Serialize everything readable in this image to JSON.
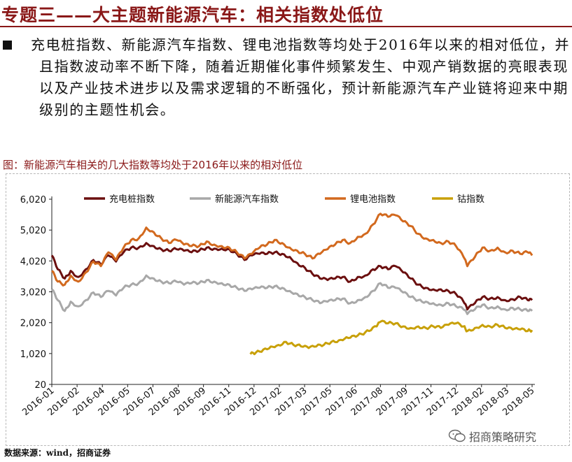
{
  "header": {
    "title": "专题三——大主题新能源汽车：相关指数处低位"
  },
  "bullet": {
    "text": "充电桩指数、新能源汽车指数、锂电池指数等均处于2016年以来的相对低位，并且指数波动率不断下降，随着近期催化事件频繁发生、中观产销数据的亮眼表现以及产业技术进步以及需求逻辑的不断强化，预计新能源汽车产业链将迎来中期级别的主题性机会。"
  },
  "figure": {
    "caption": "图：新能源汽车相关的几大指数等均处于2016年以来的相对低位"
  },
  "source": {
    "text": "数据来源：wind，招商证券"
  },
  "watermark": {
    "text": "招商策略研究",
    "icon": "wechat-icon"
  },
  "chart_data": {
    "type": "line",
    "title": "",
    "xlabel": "",
    "ylabel": "",
    "ylim": [
      20,
      6020
    ],
    "yticks": [
      "6,020",
      "5,020",
      "4,020",
      "3,020",
      "2,020",
      "1,020",
      "20"
    ],
    "ytick_values": [
      6020,
      5020,
      4020,
      3020,
      2020,
      1020,
      20
    ],
    "xticks": [
      "2016-01",
      "2016-02",
      "2016-04",
      "2016-05",
      "2016-07",
      "2016-08",
      "2016-09",
      "2016-11",
      "2016-12",
      "2017-02",
      "2017-03",
      "2017-05",
      "2017-06",
      "2017-08",
      "2017-09",
      "2017-11",
      "2017-12",
      "2018-02",
      "2018-03",
      "2018-05"
    ],
    "xrange": [
      "2016-01-04",
      "2018-06-12"
    ],
    "grid": false,
    "legend_position": "top",
    "series": [
      {
        "name": "充电桩指数",
        "color": "#6b0f0f",
        "points": [
          [
            "2016-01-04",
            4200
          ],
          [
            "2016-01-15",
            3750
          ],
          [
            "2016-01-28",
            3450
          ],
          [
            "2016-02-08",
            3700
          ],
          [
            "2016-02-22",
            3500
          ],
          [
            "2016-03-07",
            3750
          ],
          [
            "2016-03-21",
            4050
          ],
          [
            "2016-04-04",
            3900
          ],
          [
            "2016-04-18",
            4200
          ],
          [
            "2016-05-02",
            4000
          ],
          [
            "2016-05-16",
            4300
          ],
          [
            "2016-05-30",
            4450
          ],
          [
            "2016-06-13",
            4450
          ],
          [
            "2016-06-27",
            4600
          ],
          [
            "2016-07-11",
            4500
          ],
          [
            "2016-07-25",
            4400
          ],
          [
            "2016-08-08",
            4350
          ],
          [
            "2016-08-22",
            4400
          ],
          [
            "2016-09-05",
            4350
          ],
          [
            "2016-09-19",
            4300
          ],
          [
            "2016-10-03",
            4350
          ],
          [
            "2016-10-17",
            4450
          ],
          [
            "2016-10-31",
            4420
          ],
          [
            "2016-11-14",
            4420
          ],
          [
            "2016-11-28",
            4400
          ],
          [
            "2016-12-12",
            4250
          ],
          [
            "2016-12-26",
            4050
          ],
          [
            "2017-01-09",
            4200
          ],
          [
            "2017-01-23",
            4250
          ],
          [
            "2017-02-06",
            4250
          ],
          [
            "2017-02-20",
            4300
          ],
          [
            "2017-03-06",
            4250
          ],
          [
            "2017-03-20",
            4150
          ],
          [
            "2017-04-03",
            3950
          ],
          [
            "2017-04-17",
            3800
          ],
          [
            "2017-05-01",
            3600
          ],
          [
            "2017-05-15",
            3450
          ],
          [
            "2017-05-29",
            3400
          ],
          [
            "2017-06-12",
            3450
          ],
          [
            "2017-06-26",
            3500
          ],
          [
            "2017-07-10",
            3350
          ],
          [
            "2017-07-24",
            3500
          ],
          [
            "2017-08-07",
            3550
          ],
          [
            "2017-08-21",
            3750
          ],
          [
            "2017-09-04",
            3850
          ],
          [
            "2017-09-18",
            3750
          ],
          [
            "2017-10-02",
            3850
          ],
          [
            "2017-10-16",
            3650
          ],
          [
            "2017-10-30",
            3450
          ],
          [
            "2017-11-13",
            3250
          ],
          [
            "2017-11-27",
            3150
          ],
          [
            "2017-12-11",
            3100
          ],
          [
            "2017-12-25",
            3100
          ],
          [
            "2018-01-08",
            3050
          ],
          [
            "2018-01-22",
            2950
          ],
          [
            "2018-02-05",
            2700
          ],
          [
            "2018-02-12",
            2450
          ],
          [
            "2018-02-26",
            2650
          ],
          [
            "2018-03-12",
            2850
          ],
          [
            "2018-03-26",
            2800
          ],
          [
            "2018-04-09",
            2850
          ],
          [
            "2018-04-23",
            2750
          ],
          [
            "2018-05-07",
            2780
          ],
          [
            "2018-05-21",
            2850
          ],
          [
            "2018-06-04",
            2750
          ],
          [
            "2018-06-12",
            2750
          ]
        ]
      },
      {
        "name": "新能源汽车指数",
        "color": "#a8a8a8",
        "points": [
          [
            "2016-01-04",
            3100
          ],
          [
            "2016-01-15",
            2750
          ],
          [
            "2016-01-28",
            2400
          ],
          [
            "2016-02-08",
            2700
          ],
          [
            "2016-02-22",
            2550
          ],
          [
            "2016-03-07",
            2750
          ],
          [
            "2016-03-21",
            3000
          ],
          [
            "2016-04-04",
            2850
          ],
          [
            "2016-04-18",
            3050
          ],
          [
            "2016-05-02",
            2900
          ],
          [
            "2016-05-16",
            3150
          ],
          [
            "2016-05-30",
            3250
          ],
          [
            "2016-06-13",
            3300
          ],
          [
            "2016-06-27",
            3550
          ],
          [
            "2016-07-11",
            3450
          ],
          [
            "2016-07-25",
            3350
          ],
          [
            "2016-08-08",
            3300
          ],
          [
            "2016-08-22",
            3350
          ],
          [
            "2016-09-05",
            3250
          ],
          [
            "2016-09-19",
            3300
          ],
          [
            "2016-10-03",
            3300
          ],
          [
            "2016-10-17",
            3400
          ],
          [
            "2016-10-31",
            3350
          ],
          [
            "2016-11-14",
            3300
          ],
          [
            "2016-11-28",
            3250
          ],
          [
            "2016-12-12",
            3150
          ],
          [
            "2016-12-26",
            3050
          ],
          [
            "2017-01-09",
            3100
          ],
          [
            "2017-01-23",
            3150
          ],
          [
            "2017-02-06",
            3150
          ],
          [
            "2017-02-20",
            3200
          ],
          [
            "2017-03-06",
            3150
          ],
          [
            "2017-03-20",
            3050
          ],
          [
            "2017-04-03",
            2950
          ],
          [
            "2017-04-17",
            2850
          ],
          [
            "2017-05-01",
            2750
          ],
          [
            "2017-05-15",
            2650
          ],
          [
            "2017-05-29",
            2700
          ],
          [
            "2017-06-12",
            2750
          ],
          [
            "2017-06-26",
            2800
          ],
          [
            "2017-07-10",
            2650
          ],
          [
            "2017-07-24",
            2750
          ],
          [
            "2017-08-07",
            2850
          ],
          [
            "2017-08-21",
            3050
          ],
          [
            "2017-09-04",
            3300
          ],
          [
            "2017-09-18",
            3150
          ],
          [
            "2017-10-02",
            3150
          ],
          [
            "2017-10-16",
            3000
          ],
          [
            "2017-10-30",
            2850
          ],
          [
            "2017-11-13",
            2750
          ],
          [
            "2017-11-27",
            2700
          ],
          [
            "2017-12-11",
            2650
          ],
          [
            "2017-12-25",
            2600
          ],
          [
            "2018-01-08",
            2650
          ],
          [
            "2018-01-22",
            2550
          ],
          [
            "2018-02-05",
            2450
          ],
          [
            "2018-02-12",
            2300
          ],
          [
            "2018-02-26",
            2450
          ],
          [
            "2018-03-12",
            2600
          ],
          [
            "2018-03-26",
            2500
          ],
          [
            "2018-04-09",
            2550
          ],
          [
            "2018-04-23",
            2450
          ],
          [
            "2018-05-07",
            2500
          ],
          [
            "2018-05-21",
            2450
          ],
          [
            "2018-06-04",
            2400
          ],
          [
            "2018-06-12",
            2400
          ]
        ]
      },
      {
        "name": "锂电池指数",
        "color": "#d2691e",
        "points": [
          [
            "2016-01-04",
            3700
          ],
          [
            "2016-01-15",
            3350
          ],
          [
            "2016-01-28",
            3250
          ],
          [
            "2016-02-08",
            3550
          ],
          [
            "2016-02-22",
            3350
          ],
          [
            "2016-03-07",
            3650
          ],
          [
            "2016-03-21",
            4000
          ],
          [
            "2016-04-04",
            3850
          ],
          [
            "2016-04-18",
            4300
          ],
          [
            "2016-05-02",
            4050
          ],
          [
            "2016-05-16",
            4450
          ],
          [
            "2016-05-30",
            4700
          ],
          [
            "2016-06-13",
            4750
          ],
          [
            "2016-06-27",
            5100
          ],
          [
            "2016-07-11",
            4950
          ],
          [
            "2016-07-25",
            4750
          ],
          [
            "2016-08-08",
            4600
          ],
          [
            "2016-08-22",
            4700
          ],
          [
            "2016-09-05",
            4550
          ],
          [
            "2016-09-19",
            4500
          ],
          [
            "2016-10-03",
            4500
          ],
          [
            "2016-10-17",
            4650
          ],
          [
            "2016-10-31",
            4550
          ],
          [
            "2016-11-14",
            4500
          ],
          [
            "2016-11-28",
            4450
          ],
          [
            "2016-12-12",
            4300
          ],
          [
            "2016-12-26",
            4100
          ],
          [
            "2017-01-09",
            4250
          ],
          [
            "2017-01-23",
            4450
          ],
          [
            "2017-02-06",
            4550
          ],
          [
            "2017-02-20",
            4700
          ],
          [
            "2017-03-06",
            4600
          ],
          [
            "2017-03-20",
            4450
          ],
          [
            "2017-04-03",
            4350
          ],
          [
            "2017-04-17",
            4250
          ],
          [
            "2017-05-01",
            4100
          ],
          [
            "2017-05-15",
            4250
          ],
          [
            "2017-05-29",
            4400
          ],
          [
            "2017-06-12",
            4550
          ],
          [
            "2017-06-26",
            4700
          ],
          [
            "2017-07-10",
            4600
          ],
          [
            "2017-07-24",
            4800
          ],
          [
            "2017-08-07",
            4900
          ],
          [
            "2017-08-21",
            5200
          ],
          [
            "2017-09-04",
            5550
          ],
          [
            "2017-09-18",
            5450
          ],
          [
            "2017-10-02",
            5500
          ],
          [
            "2017-10-16",
            5300
          ],
          [
            "2017-10-30",
            5150
          ],
          [
            "2017-11-13",
            4900
          ],
          [
            "2017-11-27",
            4750
          ],
          [
            "2017-12-11",
            4700
          ],
          [
            "2017-12-25",
            4600
          ],
          [
            "2018-01-08",
            4650
          ],
          [
            "2018-01-22",
            4500
          ],
          [
            "2018-02-05",
            4150
          ],
          [
            "2018-02-12",
            3850
          ],
          [
            "2018-02-26",
            4150
          ],
          [
            "2018-03-12",
            4450
          ],
          [
            "2018-03-26",
            4350
          ],
          [
            "2018-04-09",
            4450
          ],
          [
            "2018-04-23",
            4300
          ],
          [
            "2018-05-07",
            4350
          ],
          [
            "2018-05-21",
            4250
          ],
          [
            "2018-06-04",
            4300
          ],
          [
            "2018-06-12",
            4200
          ]
        ]
      },
      {
        "name": "钴指数",
        "color": "#c8a008",
        "points": [
          [
            "2017-01-06",
            1000
          ],
          [
            "2017-01-16",
            1050
          ],
          [
            "2017-01-30",
            1150
          ],
          [
            "2017-02-13",
            1250
          ],
          [
            "2017-02-27",
            1300
          ],
          [
            "2017-03-13",
            1400
          ],
          [
            "2017-03-27",
            1300
          ],
          [
            "2017-04-10",
            1250
          ],
          [
            "2017-04-24",
            1200
          ],
          [
            "2017-05-08",
            1250
          ],
          [
            "2017-05-22",
            1300
          ],
          [
            "2017-06-05",
            1400
          ],
          [
            "2017-06-19",
            1450
          ],
          [
            "2017-07-03",
            1550
          ],
          [
            "2017-07-17",
            1600
          ],
          [
            "2017-07-31",
            1650
          ],
          [
            "2017-08-14",
            1750
          ],
          [
            "2017-08-28",
            1900
          ],
          [
            "2017-09-04",
            2050
          ],
          [
            "2017-09-18",
            2000
          ],
          [
            "2017-10-02",
            2000
          ],
          [
            "2017-10-16",
            1900
          ],
          [
            "2017-10-30",
            1850
          ],
          [
            "2017-11-13",
            1900
          ],
          [
            "2017-11-27",
            1850
          ],
          [
            "2017-12-11",
            1900
          ],
          [
            "2017-12-25",
            1850
          ],
          [
            "2018-01-08",
            1950
          ],
          [
            "2018-01-22",
            2000
          ],
          [
            "2018-02-05",
            1900
          ],
          [
            "2018-02-12",
            1750
          ],
          [
            "2018-02-26",
            1850
          ],
          [
            "2018-03-12",
            1950
          ],
          [
            "2018-03-26",
            1900
          ],
          [
            "2018-04-09",
            1950
          ],
          [
            "2018-04-23",
            1850
          ],
          [
            "2018-05-07",
            1800
          ],
          [
            "2018-05-21",
            1800
          ],
          [
            "2018-06-04",
            1750
          ],
          [
            "2018-06-12",
            1780
          ]
        ]
      }
    ]
  }
}
